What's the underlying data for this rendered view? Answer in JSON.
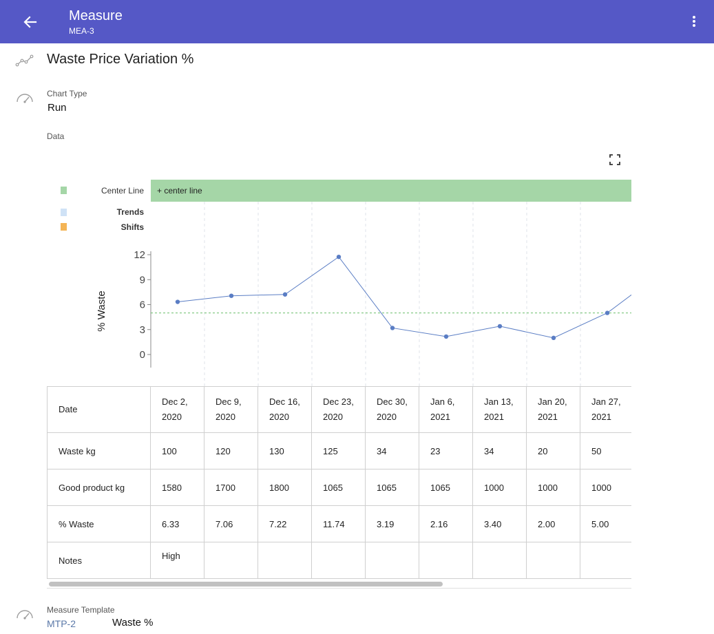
{
  "header": {
    "title": "Measure",
    "subtitle": "MEA-3",
    "back_icon": "arrow-left-icon",
    "more_icon": "more-vertical-icon",
    "background": "#5558c6"
  },
  "measure": {
    "name": "Waste Price Variation %",
    "name_icon": "trend-line-icon"
  },
  "chart_type": {
    "label": "Chart Type",
    "value": "Run",
    "icon": "gauge-icon"
  },
  "data_section": {
    "label": "Data",
    "expand_icon": "fullscreen-icon"
  },
  "legend": [
    {
      "label": "Center Line",
      "color": "#a5d6a7",
      "bar_text": "+ center line"
    },
    {
      "label": "Trends",
      "color": "#cfe2f6"
    },
    {
      "label": "Shifts",
      "color": "#f4b455"
    }
  ],
  "chart_data": {
    "type": "line",
    "ylabel": "% Waste",
    "ylim": [
      0,
      12
    ],
    "yticks": [
      0,
      3,
      6,
      9,
      12
    ],
    "center_line": 5,
    "categories": [
      "Dec 2, 2020",
      "Dec 9, 2020",
      "Dec 16, 2020",
      "Dec 23, 2020",
      "Dec 30, 2020",
      "Jan 6, 2021",
      "Jan 13, 2021",
      "Jan 20, 2021",
      "Jan 27, 2021"
    ],
    "values": [
      6.33,
      7.06,
      7.22,
      11.74,
      3.19,
      2.16,
      3.4,
      2.0,
      5.0
    ],
    "line_color": "#5a7dc4",
    "center_color": "#6bbf6b"
  },
  "table": {
    "rows": [
      {
        "label": "Date",
        "cells": [
          [
            "Dec 2,",
            "2020"
          ],
          [
            "Dec 9,",
            "2020"
          ],
          [
            "Dec 16,",
            "2020"
          ],
          [
            "Dec 23,",
            "2020"
          ],
          [
            "Dec 30,",
            "2020"
          ],
          [
            "Jan 6,",
            "2021"
          ],
          [
            "Jan 13,",
            "2021"
          ],
          [
            "Jan 20,",
            "2021"
          ],
          [
            "Jan 27,",
            "2021"
          ]
        ]
      },
      {
        "label": "Waste kg",
        "cells": [
          "100",
          "120",
          "130",
          "125",
          "34",
          "23",
          "34",
          "20",
          "50"
        ]
      },
      {
        "label": "Good product kg",
        "cells": [
          "1580",
          "1700",
          "1800",
          "1065",
          "1065",
          "1065",
          "1000",
          "1000",
          "1000"
        ]
      },
      {
        "label": "% Waste",
        "cells": [
          "6.33",
          "7.06",
          "7.22",
          "11.74",
          "3.19",
          "2.16",
          "3.40",
          "2.00",
          "5.00"
        ]
      },
      {
        "label": "Notes",
        "cells": [
          "High",
          "",
          "",
          "",
          "",
          "",
          "",
          "",
          ""
        ]
      }
    ]
  },
  "measure_template": {
    "label": "Measure Template",
    "code": "MTP-2",
    "name": "Waste %",
    "icon": "gauge-icon"
  }
}
